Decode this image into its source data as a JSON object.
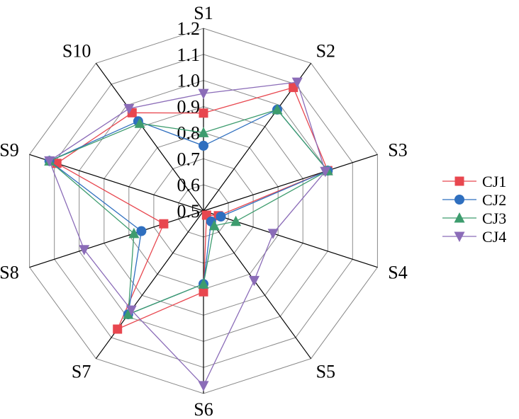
{
  "chart_data": {
    "type": "radar",
    "axes": [
      "S1",
      "S2",
      "S3",
      "S4",
      "S5",
      "S6",
      "S7",
      "S8",
      "S9",
      "S10"
    ],
    "rlim": [
      0.5,
      1.2
    ],
    "ticks": [
      "0.5",
      "0.6",
      "0.7",
      "0.8",
      "0.9",
      "1.0",
      "1.1",
      "1.2"
    ],
    "tick_values": [
      0.5,
      0.6,
      0.7,
      0.8,
      0.9,
      1.0,
      1.1,
      1.2
    ],
    "grid": true,
    "legend_position": "right",
    "series": [
      {
        "name": "CJ1",
        "color": "#e8474f",
        "marker": "square",
        "values": [
          0.875,
          1.085,
          1.0,
          0.56,
          0.52,
          0.81,
          1.06,
          0.66,
          1.09,
          0.965
        ]
      },
      {
        "name": "CJ2",
        "color": "#2f6fbf",
        "marker": "circle",
        "values": [
          0.75,
          0.98,
          1.0,
          0.57,
          0.55,
          0.78,
          0.99,
          0.75,
          1.12,
          0.925
        ]
      },
      {
        "name": "CJ3",
        "color": "#3d9c6e",
        "marker": "triangle-up",
        "values": [
          0.8,
          0.98,
          1.0,
          0.63,
          0.57,
          0.78,
          0.99,
          0.78,
          1.12,
          0.915
        ]
      },
      {
        "name": "CJ4",
        "color": "#8b6cb8",
        "marker": "triangle-down",
        "values": [
          0.95,
          1.11,
          0.99,
          0.78,
          0.83,
          1.17,
          0.97,
          0.98,
          1.12,
          0.985
        ]
      }
    ]
  }
}
